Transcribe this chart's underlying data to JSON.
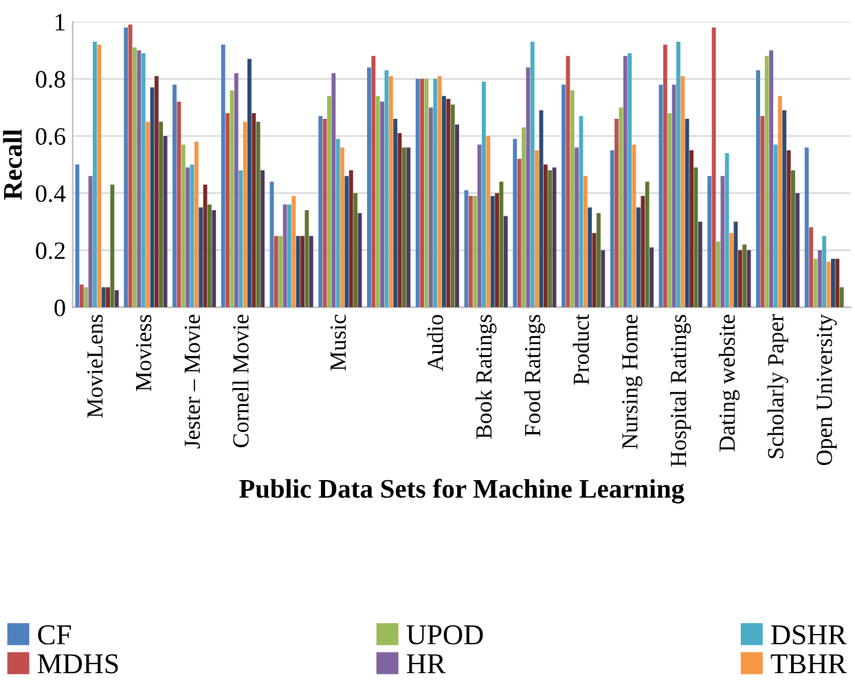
{
  "chart_data": {
    "type": "bar",
    "xlabel": "Public Data Sets for Machine Learning",
    "ylabel": "Recall",
    "categories": [
      "MovieLens",
      "Moviess",
      "Jester – Movie",
      "Cornell Movie",
      null,
      "Music",
      null,
      "Audio",
      "Book Ratings",
      "Food Ratings",
      "Product",
      "Nursing Home",
      "Hospital Ratings",
      "Dating website",
      "Scholarly Paper",
      "Open University"
    ],
    "series": [
      {
        "name": "CF",
        "color": "#4f81bd",
        "values": [
          0.5,
          0.98,
          0.78,
          0.92,
          0.44,
          0.67,
          0.84,
          0.8,
          0.41,
          0.59,
          0.78,
          0.55,
          0.78,
          0.46,
          0.83,
          0.56
        ]
      },
      {
        "name": "MDHS",
        "color": "#c0504d",
        "values": [
          0.08,
          0.99,
          0.72,
          0.68,
          0.25,
          0.66,
          0.88,
          0.8,
          0.39,
          0.52,
          0.88,
          0.66,
          0.92,
          0.98,
          0.67,
          0.28
        ]
      },
      {
        "name": "UPOD",
        "color": "#9bbb59",
        "values": [
          0.07,
          0.91,
          0.57,
          0.76,
          0.25,
          0.74,
          0.74,
          0.8,
          0.39,
          0.63,
          0.76,
          0.7,
          0.68,
          0.23,
          0.88,
          0.17
        ]
      },
      {
        "name": "HR",
        "color": "#8064a2",
        "values": [
          0.46,
          0.9,
          0.49,
          0.82,
          0.36,
          0.82,
          0.72,
          0.7,
          0.57,
          0.84,
          0.56,
          0.88,
          0.78,
          0.46,
          0.9,
          0.2
        ]
      },
      {
        "name": "DSHR",
        "color": "#4bacc6",
        "values": [
          0.93,
          0.89,
          0.5,
          0.48,
          0.36,
          0.59,
          0.83,
          0.8,
          0.79,
          0.93,
          0.67,
          0.89,
          0.93,
          0.54,
          0.57,
          0.25
        ]
      },
      {
        "name": "TBHR",
        "color": "#f79646",
        "values": [
          0.92,
          0.65,
          0.58,
          0.65,
          0.39,
          0.56,
          0.81,
          0.81,
          0.6,
          0.55,
          0.46,
          0.57,
          0.81,
          0.26,
          0.74,
          0.16
        ]
      },
      {
        "color": "#2c4d75",
        "values": [
          0.07,
          0.77,
          0.35,
          0.87,
          0.25,
          0.46,
          0.66,
          0.74,
          0.39,
          0.69,
          0.35,
          0.35,
          0.66,
          0.3,
          0.69,
          0.17
        ]
      },
      {
        "color": "#772c2a",
        "values": [
          0.07,
          0.81,
          0.43,
          0.68,
          0.25,
          0.48,
          0.61,
          0.73,
          0.4,
          0.5,
          0.26,
          0.39,
          0.55,
          0.2,
          0.55,
          0.17
        ]
      },
      {
        "color": "#5f7530",
        "values": [
          0.43,
          0.65,
          0.36,
          0.65,
          0.34,
          0.4,
          0.56,
          0.71,
          0.44,
          0.48,
          0.33,
          0.44,
          0.49,
          0.22,
          0.48,
          0.07
        ]
      },
      {
        "color": "#4d3b62",
        "values": [
          0.06,
          0.6,
          0.34,
          0.48,
          0.25,
          0.33,
          0.56,
          0.64,
          0.32,
          0.49,
          0.2,
          0.21,
          0.3,
          0.2,
          0.4,
          null
        ]
      }
    ],
    "ylim": [
      0,
      1
    ],
    "yticks": [
      0,
      0.2,
      0.4,
      0.6,
      0.8,
      1
    ],
    "grid": "y",
    "legend": "bottom"
  }
}
